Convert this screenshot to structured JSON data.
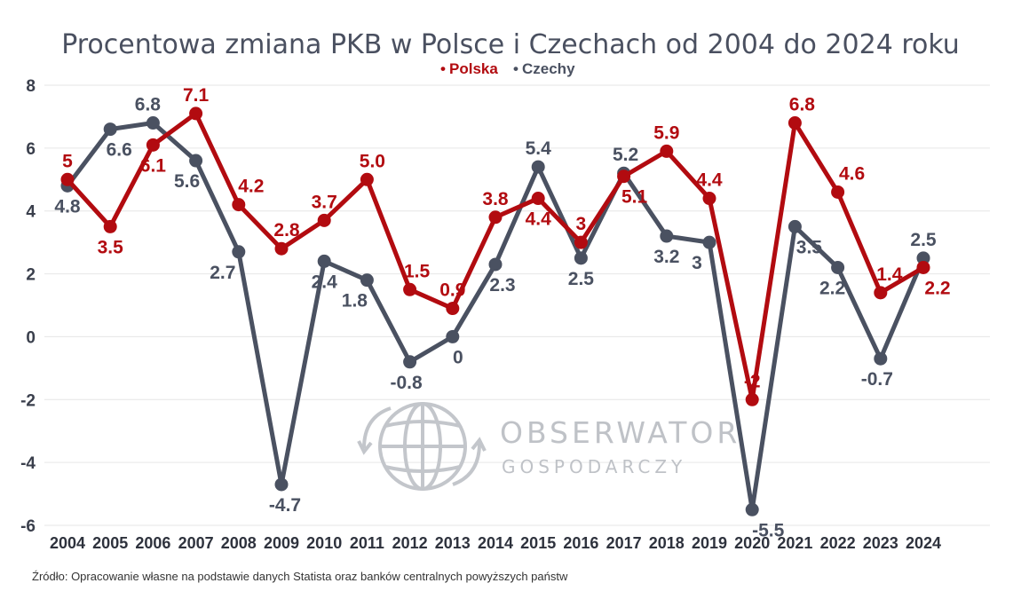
{
  "chart_data": {
    "type": "line",
    "title": "Procentowa zmiana PKB w Polsce i Czechach od 2004 do 2024 roku",
    "xlabel": "",
    "ylabel": "",
    "ylim": [
      -6,
      8
    ],
    "yticks": [
      "8",
      "6",
      "4",
      "2",
      "0",
      "-2",
      "-4",
      "-6"
    ],
    "grid": true,
    "legend_position": "top-center",
    "categories": [
      "2004",
      "2005",
      "2006",
      "2007",
      "2008",
      "2009",
      "2010",
      "2011",
      "2012",
      "2013",
      "2014",
      "2015",
      "2016",
      "2017",
      "2018",
      "2019",
      "2020",
      "2021",
      "2022",
      "2023",
      "2024"
    ],
    "series": [
      {
        "name": "Polska",
        "color": "#b20b10",
        "values": [
          5,
          3.5,
          6.1,
          7.1,
          4.2,
          2.8,
          3.7,
          5.0,
          1.5,
          0.9,
          3.8,
          4.4,
          3,
          5.1,
          5.9,
          4.4,
          -2,
          6.8,
          4.6,
          1.4,
          2.2
        ],
        "labels": [
          "5",
          "3.5",
          "6.1",
          "7.1",
          "4.2",
          "2.8",
          "3.7",
          "5.0",
          "1.5",
          "0.9",
          "3.8",
          "4.4",
          "3",
          "5.1",
          "5.9",
          "4.4",
          "-2",
          "6.8",
          "4.6",
          "1.4",
          "2.2"
        ]
      },
      {
        "name": "Czechy",
        "color": "#4a5161",
        "values": [
          4.8,
          6.6,
          6.8,
          5.6,
          2.7,
          -4.7,
          2.4,
          1.8,
          -0.8,
          0,
          2.3,
          5.4,
          2.5,
          5.2,
          3.2,
          3,
          -5.5,
          3.5,
          2.2,
          -0.7,
          2.5
        ],
        "labels": [
          "4.8",
          "6.6",
          "6.8",
          "5.6",
          "2.7",
          "-4.7",
          "2.4",
          "1.8",
          "-0.8",
          "0",
          "2.3",
          "5.4",
          "2.5",
          "5.2",
          "3.2",
          "3",
          "-5.5",
          "3.5",
          "2.2",
          "-0.7",
          "2.5"
        ]
      }
    ]
  },
  "legend": {
    "polska": "Polska",
    "czechy": "Czechy",
    "bullet": "•"
  },
  "watermark": {
    "line1": "OBSERWATOR",
    "line2": "GOSPODARCZY",
    "logo_icon": "globe-with-arrows-icon"
  },
  "source": "Źródło: Opracowanie własne na podstawie danych Statista oraz banków centralnych powyższych państw"
}
